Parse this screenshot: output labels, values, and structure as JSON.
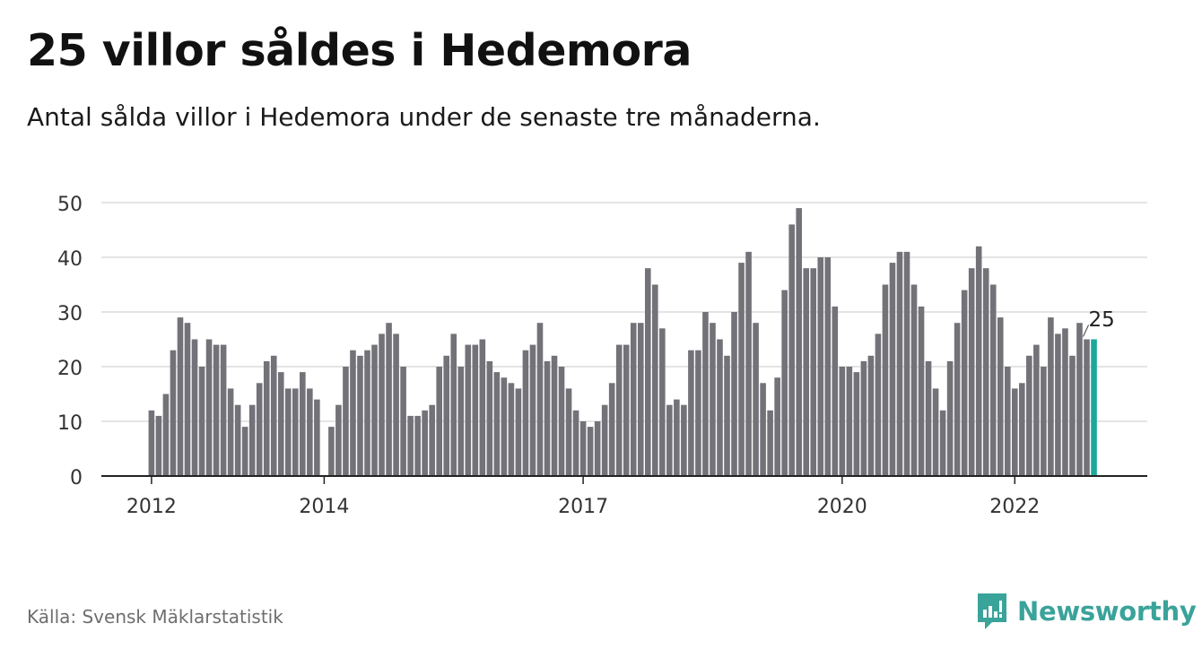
{
  "header": {
    "title": "25 villor såldes i Hedemora",
    "subtitle": "Antal sålda villor i Hedemora under de senaste tre månaderna."
  },
  "footer": {
    "source": "Källa: Svensk Mäklarstatistik",
    "brand": "Newsworthy",
    "brand_icon": "newsworthy-logo-icon"
  },
  "colors": {
    "bar": "#737278",
    "highlight": "#1aa89a",
    "grid": "#dcdcdc",
    "axis": "#222222",
    "brand": "#3aa39a"
  },
  "chart_data": {
    "type": "bar",
    "title": "25 villor såldes i Hedemora",
    "ylim": [
      0,
      50
    ],
    "yticks": [
      0,
      10,
      20,
      30,
      40,
      50
    ],
    "xticks": [
      "2012",
      "2014",
      "2017",
      "2020",
      "2022"
    ],
    "grid": true,
    "start": "2012-01",
    "interval": "monthly",
    "values": [
      12,
      11,
      15,
      23,
      29,
      28,
      25,
      20,
      25,
      24,
      24,
      16,
      13,
      9,
      13,
      17,
      21,
      22,
      19,
      16,
      16,
      19,
      16,
      14,
      null,
      9,
      13,
      20,
      23,
      22,
      23,
      24,
      26,
      28,
      26,
      20,
      11,
      11,
      12,
      13,
      20,
      22,
      26,
      20,
      24,
      24,
      25,
      21,
      19,
      18,
      17,
      16,
      23,
      24,
      28,
      21,
      22,
      20,
      16,
      12,
      10,
      9,
      10,
      13,
      17,
      24,
      24,
      28,
      28,
      38,
      35,
      27,
      13,
      14,
      13,
      23,
      23,
      30,
      28,
      25,
      22,
      30,
      39,
      41,
      28,
      17,
      12,
      18,
      34,
      46,
      49,
      38,
      38,
      40,
      40,
      31,
      20,
      20,
      19,
      21,
      22,
      26,
      35,
      39,
      41,
      41,
      35,
      31,
      21,
      16,
      12,
      21,
      28,
      34,
      38,
      42,
      38,
      35,
      29,
      20,
      16,
      17,
      22,
      24,
      20,
      29,
      26,
      27,
      22,
      28,
      25,
      25
    ],
    "highlight_index": 131,
    "annotation": "25"
  }
}
